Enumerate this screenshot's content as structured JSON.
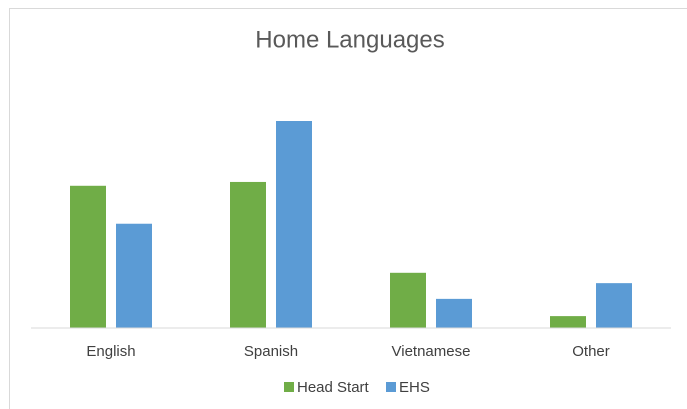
{
  "chart_data": {
    "type": "bar",
    "title": "Home Languages",
    "categories": [
      "English",
      "Spanish",
      "Vietnamese",
      "Other"
    ],
    "series": [
      {
        "name": "Head Start",
        "color": "#70ad47",
        "values": [
          37.1,
          38.1,
          14.4,
          3.1
        ]
      },
      {
        "name": "EHS",
        "color": "#5b9bd5",
        "values": [
          27.2,
          54,
          7.6,
          11.7
        ]
      }
    ],
    "ylim": [
      0,
      60
    ],
    "legend": "bottom"
  }
}
